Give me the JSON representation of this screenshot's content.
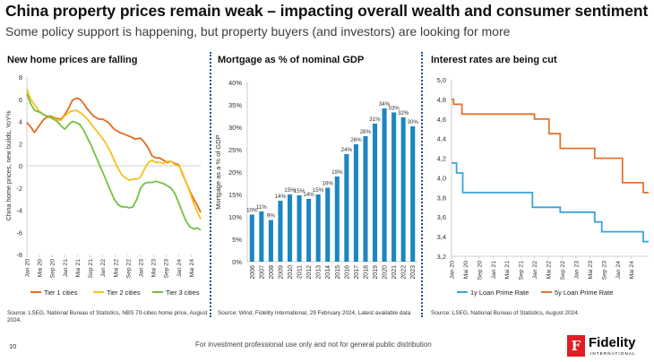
{
  "header": {
    "title": "China property prices remain weak – impacting overall wealth and consumer sentiment",
    "subtitle": "Some policy support is happening, but property buyers (and investors) are looking for more"
  },
  "footer": {
    "page_number": "10",
    "note": "For investment professional use only and not for general public distribution",
    "logo_name": "Fidelity",
    "logo_sub": "INTERNATIONAL",
    "logo_mark": "F"
  },
  "colors": {
    "orange": "#e56a1e",
    "yellow": "#f5c21b",
    "green": "#74c13f",
    "bar_blue": "#1c86c3",
    "rate_blue": "#3aa3d8",
    "rate_orange": "#e1742e"
  },
  "chart_data": [
    {
      "type": "line",
      "title": "New home prices are falling",
      "ylabel": "China home prices, new builds, YoY%",
      "ylim": [
        -8,
        8
      ],
      "yticks": [
        -8,
        -6,
        -4,
        -2,
        0,
        2,
        4,
        6,
        8
      ],
      "xlim": [
        2020.0,
        2024.583
      ],
      "xticks": [
        {
          "label": "Jan 20",
          "x": 2020.0
        },
        {
          "label": "Mai 20",
          "x": 2020.333
        },
        {
          "label": "Sep 20",
          "x": 2020.667
        },
        {
          "label": "Jan 21",
          "x": 2021.0
        },
        {
          "label": "Mai 21",
          "x": 2021.333
        },
        {
          "label": "Sep 21",
          "x": 2021.667
        },
        {
          "label": "Jan 22",
          "x": 2022.0
        },
        {
          "label": "Mai 22",
          "x": 2022.333
        },
        {
          "label": "Sep 22",
          "x": 2022.667
        },
        {
          "label": "Jan 23",
          "x": 2023.0
        },
        {
          "label": "Mai 23",
          "x": 2023.333
        },
        {
          "label": "Sep 23",
          "x": 2023.667
        },
        {
          "label": "Jan 24",
          "x": 2024.0
        },
        {
          "label": "Mai 24",
          "x": 2024.333
        }
      ],
      "legend_position": "bottom",
      "series": [
        {
          "name": "Tier 1 cities",
          "color": "#e56a1e",
          "x": [
            2020.0,
            2020.1,
            2020.2,
            2020.3,
            2020.45,
            2020.6,
            2020.75,
            2020.9,
            2021.0,
            2021.1,
            2021.2,
            2021.3,
            2021.4,
            2021.5,
            2021.6,
            2021.75,
            2021.9,
            2022.0,
            2022.15,
            2022.3,
            2022.45,
            2022.6,
            2022.75,
            2022.85,
            2023.0,
            2023.1,
            2023.2,
            2023.3,
            2023.4,
            2023.5,
            2023.6,
            2023.7,
            2023.8,
            2023.9,
            2024.0,
            2024.1,
            2024.2,
            2024.3,
            2024.4,
            2024.5,
            2024.583
          ],
          "y": [
            3.9,
            3.5,
            3.0,
            3.5,
            4.2,
            4.5,
            4.3,
            4.2,
            4.6,
            5.2,
            5.9,
            6.1,
            6.0,
            5.6,
            5.1,
            4.5,
            4.2,
            4.2,
            3.9,
            3.3,
            3.0,
            2.8,
            2.6,
            2.4,
            2.5,
            2.1,
            1.6,
            0.9,
            0.7,
            0.7,
            0.5,
            0.3,
            0.4,
            0.2,
            0.1,
            -0.7,
            -1.5,
            -2.3,
            -3.0,
            -3.6,
            -4.2
          ]
        },
        {
          "name": "Tier 2 cities",
          "color": "#f5c21b",
          "x": [
            2020.0,
            2020.1,
            2020.2,
            2020.3,
            2020.45,
            2020.6,
            2020.75,
            2020.9,
            2021.0,
            2021.15,
            2021.3,
            2021.45,
            2021.6,
            2021.75,
            2021.9,
            2022.05,
            2022.2,
            2022.3,
            2022.4,
            2022.5,
            2022.6,
            2022.7,
            2022.8,
            2022.9,
            2023.0,
            2023.1,
            2023.2,
            2023.3,
            2023.4,
            2023.5,
            2023.6,
            2023.7,
            2023.8,
            2023.9,
            2024.0,
            2024.1,
            2024.2,
            2024.3,
            2024.4,
            2024.5,
            2024.583
          ],
          "y": [
            6.9,
            6.0,
            5.5,
            5.0,
            4.6,
            4.4,
            4.2,
            4.1,
            4.5,
            4.9,
            5.0,
            4.7,
            4.2,
            3.5,
            2.9,
            2.2,
            1.3,
            0.5,
            -0.2,
            -0.8,
            -1.1,
            -1.3,
            -1.2,
            -1.2,
            -1.0,
            -0.3,
            0.3,
            0.5,
            0.3,
            0.3,
            0.2,
            0.4,
            0.4,
            0.1,
            0.0,
            -0.6,
            -1.5,
            -2.4,
            -3.4,
            -4.2,
            -4.8
          ]
        },
        {
          "name": "Tier 3 cities",
          "color": "#74c13f",
          "x": [
            2020.0,
            2020.1,
            2020.2,
            2020.35,
            2020.5,
            2020.65,
            2020.8,
            2020.9,
            2021.0,
            2021.1,
            2021.2,
            2021.3,
            2021.4,
            2021.5,
            2021.6,
            2021.7,
            2021.8,
            2021.9,
            2022.0,
            2022.1,
            2022.2,
            2022.3,
            2022.4,
            2022.5,
            2022.6,
            2022.7,
            2022.8,
            2022.9,
            2023.0,
            2023.1,
            2023.2,
            2023.3,
            2023.4,
            2023.5,
            2023.6,
            2023.7,
            2023.8,
            2023.9,
            2024.0,
            2024.1,
            2024.2,
            2024.3,
            2024.4,
            2024.5,
            2024.583
          ],
          "y": [
            6.5,
            5.6,
            5.0,
            4.8,
            4.5,
            4.3,
            4.0,
            3.6,
            3.3,
            3.7,
            4.0,
            3.9,
            3.7,
            3.2,
            2.5,
            1.8,
            1.0,
            0.2,
            -0.6,
            -1.4,
            -2.2,
            -3.0,
            -3.5,
            -3.7,
            -3.7,
            -3.8,
            -3.7,
            -3.0,
            -2.0,
            -1.6,
            -1.5,
            -1.5,
            -1.4,
            -1.5,
            -1.6,
            -1.8,
            -2.0,
            -2.5,
            -3.3,
            -4.2,
            -5.0,
            -5.5,
            -5.7,
            -5.6,
            -5.8
          ]
        }
      ],
      "source": "Source: LSEG, National Bureau of Statistics, NBS 70-cities home price, August 2024."
    },
    {
      "type": "bar",
      "title": "Mortgage as % of nominal GDP",
      "ylabel": "Mortgage as a % of GDP",
      "ylim": [
        0,
        40
      ],
      "yticks": [
        "0%",
        "5%",
        "10%",
        "15%",
        "20%",
        "25%",
        "30%",
        "35%",
        "40%"
      ],
      "categories": [
        "2006",
        "2007",
        "2008",
        "2009",
        "2010",
        "2011",
        "2012",
        "2013",
        "2014",
        "2015",
        "2016",
        "2017",
        "2018",
        "2019",
        "2020",
        "2021",
        "2022",
        "2023"
      ],
      "values": [
        10.5,
        11.2,
        9.3,
        13.6,
        15.0,
        14.8,
        14.0,
        15.0,
        16.5,
        19.0,
        24.0,
        26.2,
        28.0,
        30.8,
        34.2,
        33.3,
        32.2,
        30.2
      ],
      "data_labels": [
        "10%",
        "11%",
        "9%",
        "14%",
        "15%",
        "15%",
        "14%",
        "15%",
        "16%",
        "19%",
        "24%",
        "26%",
        "28%",
        "31%",
        "34%",
        "33%",
        "32%",
        "30%"
      ],
      "color": "#1c86c3",
      "source": "Source: Wind, Fidelity International, 29 February 2024, Latest available data"
    },
    {
      "type": "line",
      "title": "Interest rates are being cut",
      "ylim": [
        3.2,
        5.0
      ],
      "yticks": [
        "3,2",
        "3,4",
        "3,6",
        "3,8",
        "4,0",
        "4,2",
        "4,4",
        "4,6",
        "4,8",
        "5,0"
      ],
      "xlim": [
        2020.0,
        2024.75
      ],
      "xticks": [
        {
          "label": "Jan 20",
          "x": 2020.0
        },
        {
          "label": "Mai 20",
          "x": 2020.333
        },
        {
          "label": "Sep 20",
          "x": 2020.667
        },
        {
          "label": "Jan 21",
          "x": 2021.0
        },
        {
          "label": "Mai 21",
          "x": 2021.333
        },
        {
          "label": "Sep 21",
          "x": 2021.667
        },
        {
          "label": "Jan 22",
          "x": 2022.0
        },
        {
          "label": "Mai 22",
          "x": 2022.333
        },
        {
          "label": "Sep 22",
          "x": 2022.667
        },
        {
          "label": "Jan 23",
          "x": 2023.0
        },
        {
          "label": "Mai 23",
          "x": 2023.333
        },
        {
          "label": "Sep 23",
          "x": 2023.667
        },
        {
          "label": "Jan 24",
          "x": 2024.0
        },
        {
          "label": "Mai 24",
          "x": 2024.333
        }
      ],
      "legend_position": "bottom",
      "series": [
        {
          "name": "1y Loan Prime Rate",
          "color": "#3aa3d8",
          "x": [
            2020.0,
            2020.12,
            2020.12,
            2020.27,
            2020.27,
            2021.95,
            2021.95,
            2022.62,
            2022.62,
            2023.45,
            2023.45,
            2023.62,
            2023.62,
            2024.62,
            2024.62,
            2024.75
          ],
          "y": [
            4.15,
            4.15,
            4.05,
            4.05,
            3.85,
            3.85,
            3.7,
            3.7,
            3.65,
            3.65,
            3.55,
            3.55,
            3.45,
            3.45,
            3.35,
            3.35
          ]
        },
        {
          "name": "5y Loan Prime Rate",
          "color": "#e1742e",
          "x": [
            2020.0,
            2020.05,
            2020.05,
            2020.25,
            2020.25,
            2022.0,
            2022.0,
            2022.35,
            2022.35,
            2022.62,
            2022.62,
            2023.45,
            2023.45,
            2024.12,
            2024.12,
            2024.62,
            2024.62,
            2024.75
          ],
          "y": [
            4.8,
            4.8,
            4.75,
            4.75,
            4.65,
            4.65,
            4.6,
            4.6,
            4.45,
            4.45,
            4.3,
            4.3,
            4.2,
            4.2,
            3.95,
            3.95,
            3.85,
            3.85
          ]
        }
      ],
      "source": "Source: LSEG, National Bureau of Statistics, August 2024."
    }
  ]
}
